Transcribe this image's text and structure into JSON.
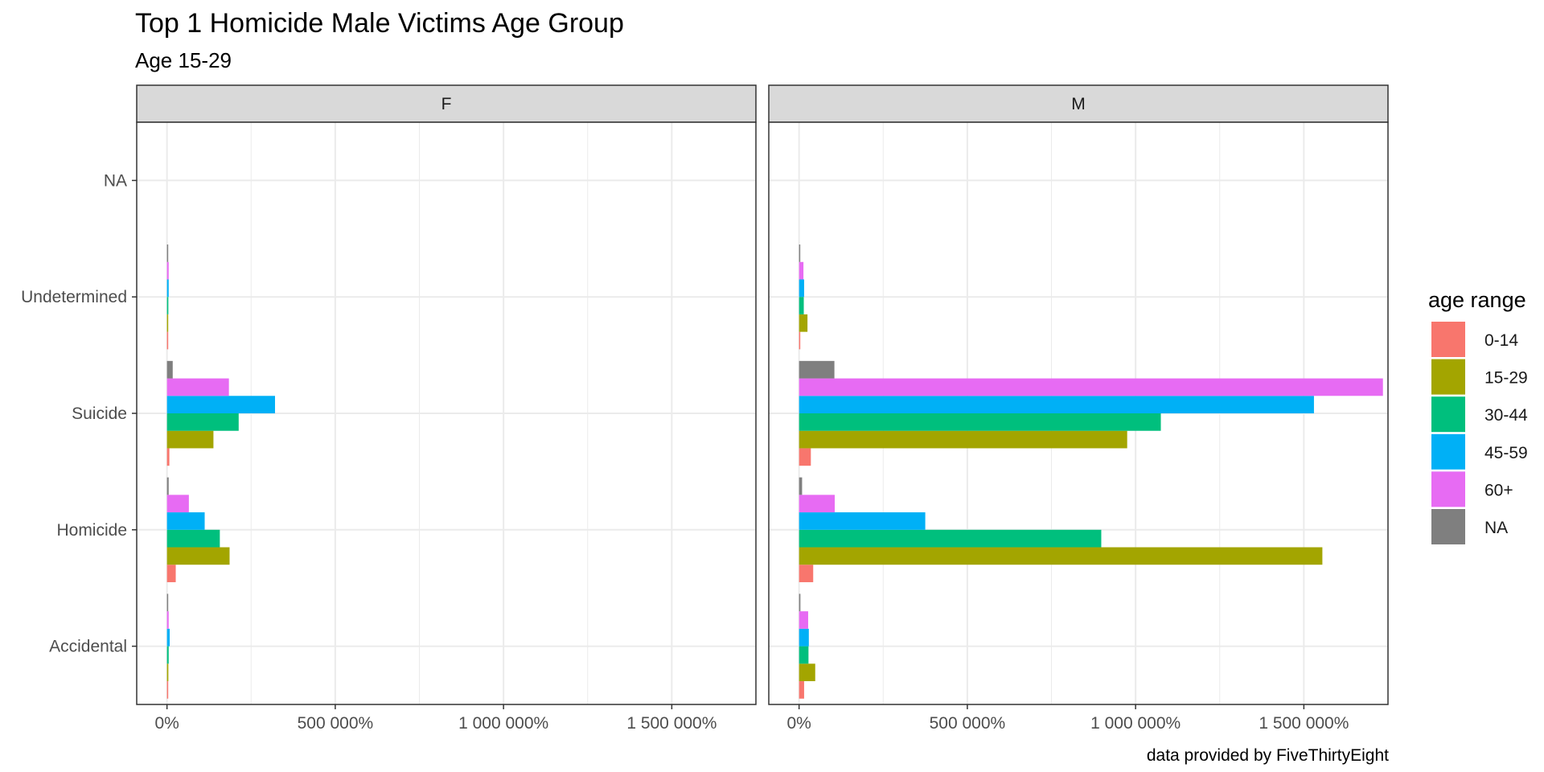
{
  "chart_data": {
    "type": "bar",
    "orientation": "horizontal",
    "title": "Top 1 Homicide Male Victims Age Group",
    "subtitle": "Age 15-29",
    "caption": "data provided by FiveThirtyEight",
    "facets": [
      "F",
      "M"
    ],
    "categories": [
      "Accidental",
      "Homicide",
      "Suicide",
      "Undetermined",
      "NA"
    ],
    "xlim": [
      -90000,
      1750000
    ],
    "x_ticks": [
      0,
      500000,
      1000000,
      1500000
    ],
    "x_tick_labels": [
      "0%",
      "500 000%",
      "1 000 000%",
      "1 500 000%"
    ],
    "grid": true,
    "legend": {
      "title": "age range",
      "position": "right",
      "entries": [
        "0-14",
        "15-29",
        "30-44",
        "45-59",
        "60+",
        "NA"
      ],
      "colors": [
        "#F8766D",
        "#A3A500",
        "#00BF7D",
        "#00B0F6",
        "#E76BF3",
        "#7F7F7F"
      ]
    },
    "series": [
      {
        "name": "0-14",
        "F": [
          3000,
          26000,
          7000,
          1000,
          null
        ],
        "M": [
          15000,
          42000,
          35000,
          2000,
          null
        ]
      },
      {
        "name": "15-29",
        "F": [
          4000,
          186000,
          138000,
          3000,
          null
        ],
        "M": [
          48000,
          1555000,
          975000,
          25000,
          null
        ]
      },
      {
        "name": "30-44",
        "F": [
          5000,
          157000,
          213000,
          4000,
          null
        ],
        "M": [
          28000,
          898000,
          1075000,
          14000,
          null
        ]
      },
      {
        "name": "45-59",
        "F": [
          8000,
          112000,
          321000,
          5000,
          null
        ],
        "M": [
          29000,
          375000,
          1530000,
          15000,
          null
        ]
      },
      {
        "name": "60+",
        "F": [
          5000,
          65000,
          184000,
          5000,
          null
        ],
        "M": [
          27000,
          106000,
          1735000,
          13000,
          null
        ]
      },
      {
        "name": "NA",
        "F": [
          1000,
          5000,
          17000,
          1000,
          null
        ],
        "M": [
          4000,
          9000,
          105000,
          2000,
          null
        ]
      }
    ]
  }
}
